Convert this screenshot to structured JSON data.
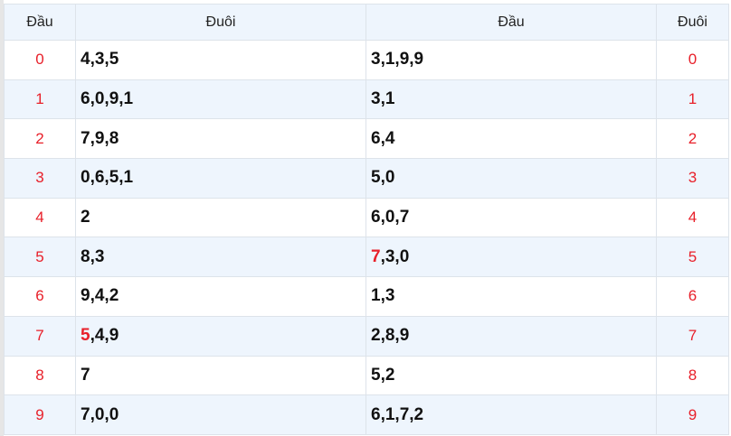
{
  "headers": [
    "Đầu",
    "Đuôi",
    "Đầu",
    "Đuôi"
  ],
  "colors": {
    "accent": "#e8202a",
    "header_bg": "#eef5fd",
    "border": "#dde3ea"
  },
  "rows": [
    {
      "n": "0",
      "left": {
        "hl": "",
        "rest": "4,3,5"
      },
      "right": {
        "hl": "",
        "rest": "3,1,9,9"
      }
    },
    {
      "n": "1",
      "left": {
        "hl": "",
        "rest": "6,0,9,1"
      },
      "right": {
        "hl": "",
        "rest": "3,1"
      }
    },
    {
      "n": "2",
      "left": {
        "hl": "",
        "rest": "7,9,8"
      },
      "right": {
        "hl": "",
        "rest": "6,4"
      }
    },
    {
      "n": "3",
      "left": {
        "hl": "",
        "rest": "0,6,5,1"
      },
      "right": {
        "hl": "",
        "rest": "5,0"
      }
    },
    {
      "n": "4",
      "left": {
        "hl": "",
        "rest": "2"
      },
      "right": {
        "hl": "",
        "rest": "6,0,7"
      }
    },
    {
      "n": "5",
      "left": {
        "hl": "",
        "rest": "8,3"
      },
      "right": {
        "hl": "7",
        "rest": ",3,0"
      }
    },
    {
      "n": "6",
      "left": {
        "hl": "",
        "rest": "9,4,2"
      },
      "right": {
        "hl": "",
        "rest": "1,3"
      }
    },
    {
      "n": "7",
      "left": {
        "hl": "5",
        "rest": ",4,9"
      },
      "right": {
        "hl": "",
        "rest": "2,8,9"
      }
    },
    {
      "n": "8",
      "left": {
        "hl": "",
        "rest": "7"
      },
      "right": {
        "hl": "",
        "rest": "5,2"
      }
    },
    {
      "n": "9",
      "left": {
        "hl": "",
        "rest": "7,0,0"
      },
      "right": {
        "hl": "",
        "rest": "6,1,7,2"
      }
    }
  ]
}
